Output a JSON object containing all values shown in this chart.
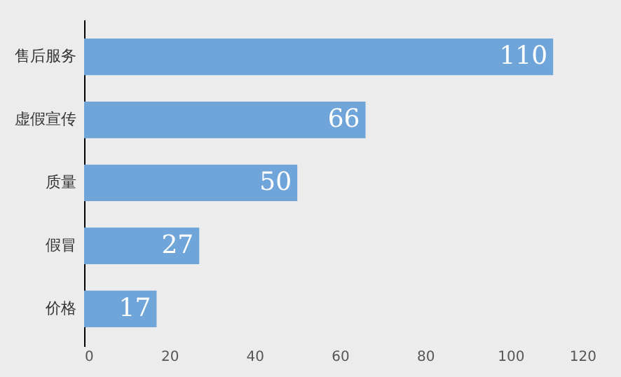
{
  "chart_data": {
    "type": "bar",
    "orientation": "horizontal",
    "categories": [
      "售后服务",
      "虚假宣传",
      "质量",
      "假冒",
      "价格"
    ],
    "values": [
      110,
      66,
      50,
      27,
      17
    ],
    "color": "#6fa5d9",
    "xlim": [
      0,
      120
    ],
    "xticks": [
      0,
      20,
      40,
      60,
      80,
      100,
      120
    ],
    "grid": false,
    "data_labels": true
  }
}
